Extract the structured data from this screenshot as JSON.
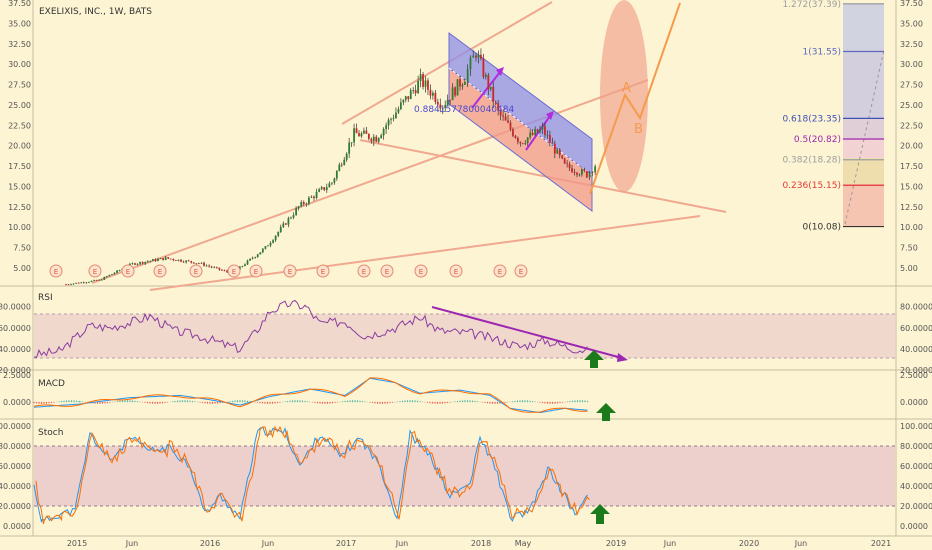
{
  "chart_data": {
    "type": "candlestick",
    "title": "EXELIXIS, INC., 1W, BATS",
    "x_ticks": [
      "2015",
      "Jun",
      "2016",
      "Jun",
      "2017",
      "Jun",
      "2018",
      "May",
      "2019",
      "Jun",
      "2020",
      "Jun",
      "2021"
    ],
    "price_axis": {
      "ticks": [
        "37.50",
        "35.00",
        "32.50",
        "30.00",
        "27.50",
        "25.00",
        "22.50",
        "20.00",
        "17.50",
        "15.00",
        "12.50",
        "10.00",
        "7.50",
        "5.00"
      ],
      "range": [
        4.2,
        38.0
      ]
    },
    "price_series_keypoints": [
      {
        "t": "2014-12",
        "close": 3.0
      },
      {
        "t": "2015-03",
        "close": 3.5
      },
      {
        "t": "2015-06",
        "close": 5.5
      },
      {
        "t": "2015-09",
        "close": 6.2
      },
      {
        "t": "2015-12",
        "close": 5.6
      },
      {
        "t": "2016-03",
        "close": 4.3
      },
      {
        "t": "2016-06",
        "close": 7.5
      },
      {
        "t": "2016-09",
        "close": 12.5
      },
      {
        "t": "2016-12",
        "close": 15.5
      },
      {
        "t": "2017-02",
        "close": 21.5
      },
      {
        "t": "2017-04",
        "close": 21.0
      },
      {
        "t": "2017-06",
        "close": 24.5
      },
      {
        "t": "2017-08",
        "close": 28.0
      },
      {
        "t": "2017-10",
        "close": 25.0
      },
      {
        "t": "2017-12",
        "close": 28.5
      },
      {
        "t": "2018-01",
        "close": 31.5
      },
      {
        "t": "2018-03",
        "close": 24.0
      },
      {
        "t": "2018-05",
        "close": 20.5
      },
      {
        "t": "2018-07",
        "close": 22.0
      },
      {
        "t": "2018-09",
        "close": 17.5
      },
      {
        "t": "2018-11",
        "close": 16.5
      },
      {
        "t": "2018-12",
        "close": 18.0
      }
    ],
    "earnings_markers": {
      "label": "E",
      "count": 15
    },
    "annotations": {
      "channel_value_label": "0.8841577800040484",
      "wave_labels": [
        "A",
        "B"
      ]
    },
    "fibonacci": [
      {
        "level": "1.272(37.39)",
        "price": 37.39,
        "color": "#9e9e9e"
      },
      {
        "level": "1(31.55)",
        "price": 31.55,
        "color": "#5c6bc0"
      },
      {
        "level": "0.618(23.35)",
        "price": 23.35,
        "color": "#3f51b5"
      },
      {
        "level": "0.5(20.82)",
        "price": 20.82,
        "color": "#9c27b0"
      },
      {
        "level": "0.382(18.28)",
        "price": 18.28,
        "color": "#9e9e9e"
      },
      {
        "level": "0.236(15.15)",
        "price": 15.15,
        "color": "#e53935"
      },
      {
        "level": "0(10.08)",
        "price": 10.08,
        "color": "#333333"
      }
    ],
    "rsi": {
      "label": "RSI",
      "ticks": [
        "80.0000",
        "60.0000",
        "40.0000",
        "20.0000"
      ],
      "range": [
        20,
        92
      ],
      "band": [
        30,
        70
      ]
    },
    "macd": {
      "label": "MACD",
      "ticks": [
        "2.5000",
        "0.0000"
      ],
      "range": [
        -1.6,
        2.6
      ]
    },
    "stoch": {
      "label": "Stoch",
      "ticks": [
        "100.0000",
        "80.0000",
        "60.0000",
        "40.0000",
        "20.0000",
        "0.0000"
      ],
      "range": [
        0,
        100
      ],
      "band": [
        20,
        80
      ]
    }
  }
}
